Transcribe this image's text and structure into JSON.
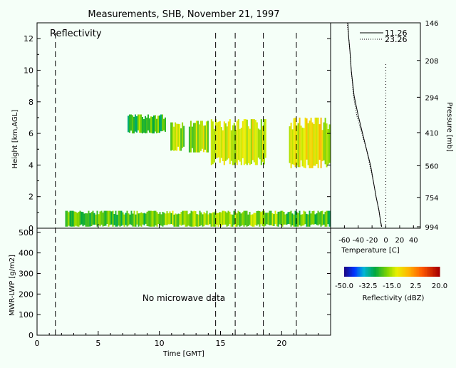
{
  "title": "Measurements, SHB, November 21, 1997",
  "colors": {
    "background": "#f5fff8",
    "axis": "#000000"
  },
  "reflectivity_panel": {
    "label": "Reflectivity",
    "ylabel": "Height [km,AGL]",
    "y_ticks": [
      "0",
      "2",
      "4",
      "6",
      "8",
      "10",
      "12"
    ],
    "ylim": [
      0,
      13
    ],
    "xlim": [
      0,
      24
    ]
  },
  "lwp_panel": {
    "ylabel": "MWR-LWP [g/m2]",
    "y_ticks": [
      "0",
      "100",
      "200",
      "300",
      "400",
      "500"
    ],
    "ylim": [
      0,
      520
    ],
    "note": "No microwave data",
    "xlabel": "Time [GMT]",
    "x_ticks": [
      "0",
      "5",
      "10",
      "15",
      "20"
    ]
  },
  "sounding_panel": {
    "legend": [
      {
        "label": "11.26",
        "style": "solid"
      },
      {
        "label": "23.26",
        "style": "dotted"
      }
    ],
    "pressure_label": "Pressure [mb]",
    "pressure_ticks": [
      "146",
      "208",
      "294",
      "410",
      "560",
      "754",
      "994"
    ],
    "xlabel": "Temperature [C]",
    "x_ticks": [
      "-60",
      "-40",
      "-20",
      "0",
      "20",
      "40"
    ],
    "xlim": [
      -80,
      50
    ]
  },
  "colorbar": {
    "label": "Reflectivity (dBZ)",
    "ticks": [
      "-50.0",
      "-32.5",
      "-15.0",
      "2.5",
      "20.0"
    ],
    "range": [
      -50,
      20
    ]
  },
  "chart_data": [
    {
      "type": "heatmap",
      "title": "Measurements, SHB, November 21, 1997",
      "panel": "Reflectivity",
      "xlabel": "Time [GMT]",
      "ylabel": "Height [km,AGL]",
      "xlim": [
        0,
        24
      ],
      "ylim": [
        0,
        13
      ],
      "sounding_times": [
        1.5,
        14.6,
        16.2,
        18.5,
        21.2
      ],
      "cloud_layers": [
        {
          "t_start": 7.4,
          "t_end": 10.5,
          "base_km": 6.0,
          "top_km": 7.2,
          "dbz": -25
        },
        {
          "t_start": 10.9,
          "t_end": 12.0,
          "base_km": 4.9,
          "top_km": 6.7,
          "dbz": -20
        },
        {
          "t_start": 12.4,
          "t_end": 14.0,
          "base_km": 4.8,
          "top_km": 6.8,
          "dbz": -18
        },
        {
          "t_start": 14.2,
          "t_end": 18.7,
          "base_km": 4.0,
          "top_km": 6.9,
          "dbz": -15
        },
        {
          "t_start": 20.6,
          "t_end": 23.9,
          "base_km": 3.8,
          "top_km": 7.0,
          "dbz": -12
        },
        {
          "t_start": 2.3,
          "t_end": 23.9,
          "base_km": 0.1,
          "top_km": 1.1,
          "dbz": -22
        }
      ]
    },
    {
      "type": "line",
      "panel": "MWR-LWP",
      "xlabel": "Time [GMT]",
      "ylabel": "MWR-LWP [g/m2]",
      "xlim": [
        0,
        24
      ],
      "ylim": [
        0,
        520
      ],
      "series": []
    },
    {
      "type": "line",
      "panel": "Sounding",
      "xlabel": "Temperature [C]",
      "ylabel": "Pressure [mb]",
      "series": [
        {
          "name": "11.26",
          "style": "solid",
          "temperature": [
            -55,
            -54,
            -52,
            -50,
            -46,
            -40,
            -34,
            -28,
            -22,
            -18,
            -14,
            -10,
            -8,
            -6
          ],
          "pressure": [
            146,
            165,
            190,
            230,
            290,
            350,
            410,
            480,
            560,
            650,
            754,
            850,
            930,
            994
          ]
        },
        {
          "name": "23.26",
          "style": "dotted",
          "temperature": [
            -56,
            -54,
            -52,
            -50,
            -47,
            -42,
            -35,
            -28,
            -23,
            -18,
            -14,
            -10,
            -8,
            -7
          ],
          "pressure": [
            146,
            165,
            190,
            230,
            290,
            350,
            410,
            480,
            560,
            650,
            754,
            850,
            930,
            994
          ]
        }
      ]
    },
    {
      "type": "bar",
      "panel": "Colorbar",
      "title": "Reflectivity (dBZ)",
      "range": [
        -50,
        20
      ],
      "ticks": [
        -50.0,
        -32.5,
        -15.0,
        2.5,
        20.0
      ]
    }
  ]
}
